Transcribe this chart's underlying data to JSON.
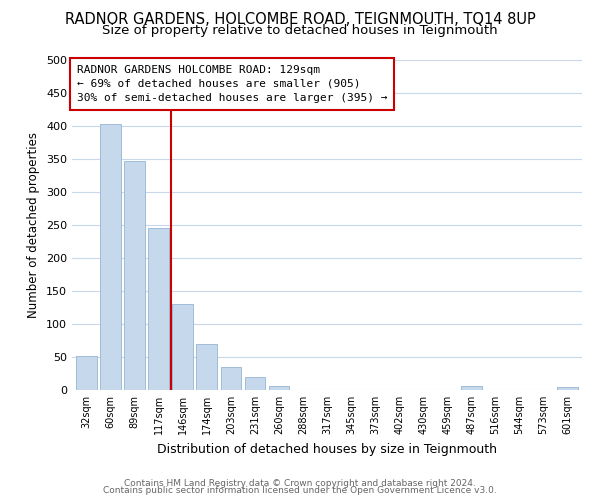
{
  "title": "RADNOR GARDENS, HOLCOMBE ROAD, TEIGNMOUTH, TQ14 8UP",
  "subtitle": "Size of property relative to detached houses in Teignmouth",
  "xlabel": "Distribution of detached houses by size in Teignmouth",
  "ylabel": "Number of detached properties",
  "bar_labels": [
    "32sqm",
    "60sqm",
    "89sqm",
    "117sqm",
    "146sqm",
    "174sqm",
    "203sqm",
    "231sqm",
    "260sqm",
    "288sqm",
    "317sqm",
    "345sqm",
    "373sqm",
    "402sqm",
    "430sqm",
    "459sqm",
    "487sqm",
    "516sqm",
    "544sqm",
    "573sqm",
    "601sqm"
  ],
  "bar_values": [
    52,
    403,
    347,
    246,
    130,
    70,
    35,
    20,
    6,
    0,
    0,
    0,
    0,
    0,
    0,
    0,
    6,
    0,
    0,
    0,
    5
  ],
  "bar_color": "#c5d8ec",
  "bar_edge_color": "#a0bcd8",
  "vline_color": "#cc0000",
  "ylim": [
    0,
    500
  ],
  "yticks": [
    0,
    50,
    100,
    150,
    200,
    250,
    300,
    350,
    400,
    450,
    500
  ],
  "annotation_title": "RADNOR GARDENS HOLCOMBE ROAD: 129sqm",
  "annotation_line1": "← 69% of detached houses are smaller (905)",
  "annotation_line2": "30% of semi-detached houses are larger (395) →",
  "footer1": "Contains HM Land Registry data © Crown copyright and database right 2024.",
  "footer2": "Contains public sector information licensed under the Open Government Licence v3.0.",
  "bg_color": "#ffffff",
  "plot_bg_color": "#ffffff",
  "grid_color": "#c8d8e8",
  "title_fontsize": 10.5,
  "subtitle_fontsize": 9.5,
  "annotation_box_color": "#ffffff",
  "annotation_box_edge": "#cc0000"
}
